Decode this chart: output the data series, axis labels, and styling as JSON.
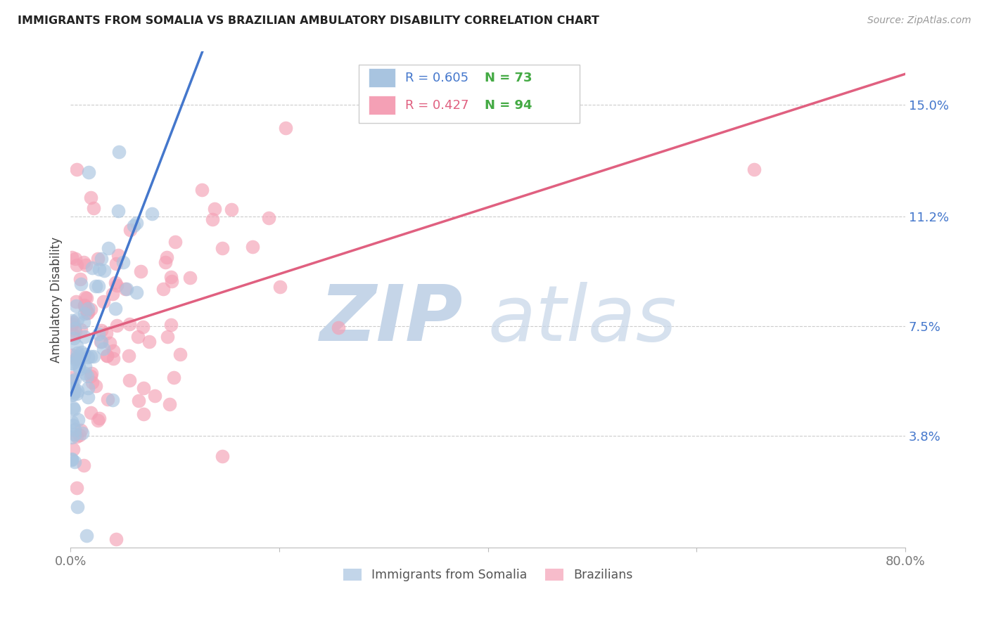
{
  "title": "IMMIGRANTS FROM SOMALIA VS BRAZILIAN AMBULATORY DISABILITY CORRELATION CHART",
  "source": "Source: ZipAtlas.com",
  "ylabel": "Ambulatory Disability",
  "ytick_labels": [
    "3.8%",
    "7.5%",
    "11.2%",
    "15.0%"
  ],
  "ytick_values": [
    0.038,
    0.075,
    0.112,
    0.15
  ],
  "xlim": [
    0.0,
    0.8
  ],
  "ylim": [
    0.0,
    0.168
  ],
  "legend_blue_r": "R = 0.605",
  "legend_blue_n": "N = 73",
  "legend_pink_r": "R = 0.427",
  "legend_pink_n": "N = 94",
  "blue_color": "#A8C4E0",
  "pink_color": "#F4A0B5",
  "trendline_blue_color": "#4477CC",
  "trendline_pink_color": "#E06080",
  "background_color": "#FFFFFF",
  "grid_color": "#CCCCCC",
  "title_color": "#222222",
  "source_color": "#999999",
  "ylabel_color": "#444444",
  "r_value_color": "#4477CC",
  "n_value_color": "#44AA44",
  "watermark_zip_color": "#C5D5E8",
  "watermark_atlas_color": "#C5D5E8",
  "legend_label_blue": "Immigrants from Somalia",
  "legend_label_pink": "Brazilians",
  "n_somalia": 73,
  "n_brazil": 94,
  "r_somalia": 0.605,
  "r_brazil": 0.427,
  "somalia_seed": 42,
  "brazil_seed": 99
}
